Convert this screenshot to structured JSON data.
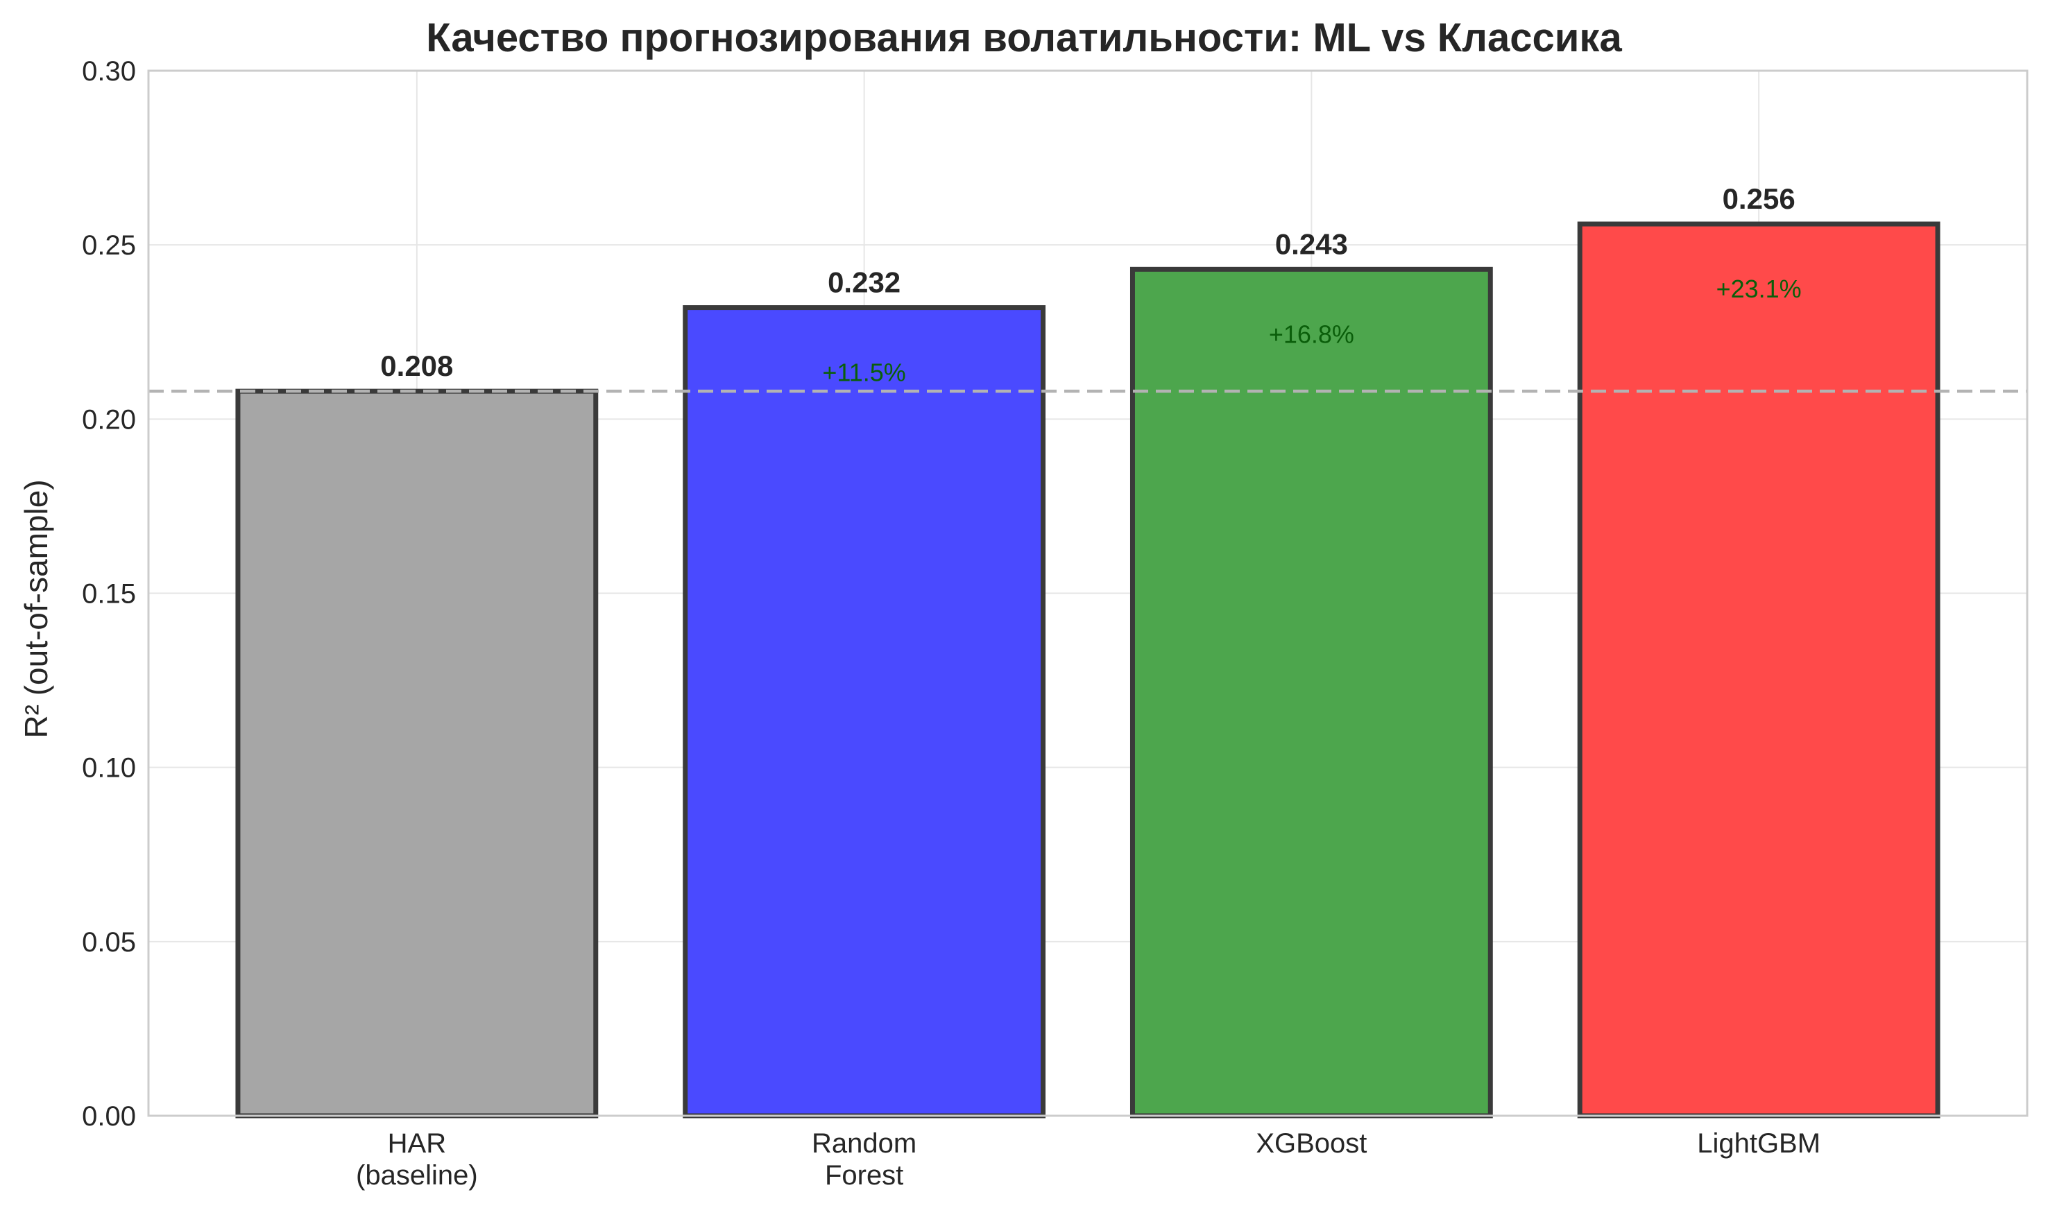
{
  "chart_data": {
    "type": "bar",
    "title": "Качество прогнозирования волатильности: ML vs Классика",
    "xlabel": "",
    "ylabel": "R² (out-of-sample)",
    "categories": [
      [
        "HAR",
        "(baseline)"
      ],
      [
        "Random",
        "Forest"
      ],
      [
        "XGBoost"
      ],
      [
        "LightGBM"
      ]
    ],
    "values": [
      0.208,
      0.232,
      0.243,
      0.256
    ],
    "value_labels": [
      "0.208",
      "0.232",
      "0.243",
      "0.256"
    ],
    "improvement_labels": [
      "",
      "+11.5%",
      "+16.8%",
      "+23.1%"
    ],
    "colors": [
      "#a6a6a6",
      "#4a4aff",
      "#4da64d",
      "#ff4a4a"
    ],
    "baseline": 0.208,
    "ylim": [
      0,
      0.3
    ],
    "yticks": [
      0.0,
      0.05,
      0.1,
      0.15,
      0.2,
      0.25,
      0.3
    ],
    "ytick_labels": [
      "0.00",
      "0.05",
      "0.10",
      "0.15",
      "0.20",
      "0.25",
      "0.30"
    ],
    "grid": true
  }
}
